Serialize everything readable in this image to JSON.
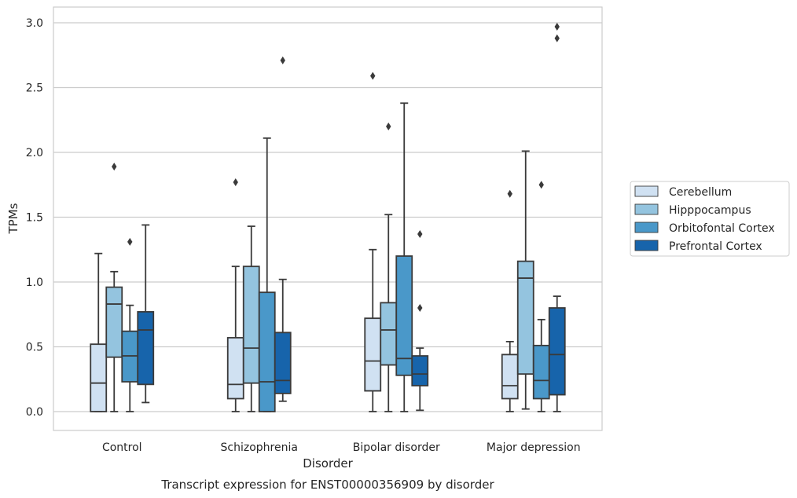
{
  "chart_data": {
    "type": "boxplot",
    "xlabel": "Disorder",
    "ylabel": "TPMs",
    "caption": "Transcript expression for ENST00000356909 by disorder",
    "categories": [
      "Control",
      "Schizophrenia",
      "Bipolar disorder",
      "Major depression"
    ],
    "ylim": [
      -0.15,
      3.12
    ],
    "yticks": [
      0.0,
      0.5,
      1.0,
      1.5,
      2.0,
      2.5,
      3.0
    ],
    "ytick_labels": [
      "0.0",
      "0.5",
      "1.0",
      "1.5",
      "2.0",
      "2.5",
      "3.0"
    ],
    "grid": "horizontal",
    "legend": {
      "placement": "right",
      "entries": [
        "Cerebellum",
        "Hipppocampus",
        "Orbitofontal Cortex",
        "Prefrontal Cortex"
      ]
    },
    "colors": [
      "#d0e1f2",
      "#94c4df",
      "#4a98c9",
      "#1764ab"
    ],
    "series": [
      {
        "name": "Cerebellum",
        "stats": [
          {
            "whislo": 0.0,
            "q1": 0.0,
            "med": 0.22,
            "q3": 0.52,
            "whishi": 1.22,
            "fliers": []
          },
          {
            "whislo": 0.0,
            "q1": 0.1,
            "med": 0.21,
            "q3": 0.57,
            "whishi": 1.12,
            "fliers": [
              1.77
            ]
          },
          {
            "whislo": 0.0,
            "q1": 0.16,
            "med": 0.39,
            "q3": 0.72,
            "whishi": 1.25,
            "fliers": [
              2.59
            ]
          },
          {
            "whislo": 0.0,
            "q1": 0.1,
            "med": 0.2,
            "q3": 0.44,
            "whishi": 0.54,
            "fliers": [
              1.68
            ]
          }
        ]
      },
      {
        "name": "Hipppocampus",
        "stats": [
          {
            "whislo": 0.0,
            "q1": 0.42,
            "med": 0.83,
            "q3": 0.96,
            "whishi": 1.08,
            "fliers": [
              1.89
            ]
          },
          {
            "whislo": 0.0,
            "q1": 0.22,
            "med": 0.49,
            "q3": 1.12,
            "whishi": 1.43,
            "fliers": []
          },
          {
            "whislo": 0.0,
            "q1": 0.36,
            "med": 0.63,
            "q3": 0.84,
            "whishi": 1.52,
            "fliers": [
              2.2
            ]
          },
          {
            "whislo": 0.02,
            "q1": 0.29,
            "med": 1.03,
            "q3": 1.16,
            "whishi": 2.01,
            "fliers": []
          }
        ]
      },
      {
        "name": "Orbitofontal Cortex",
        "stats": [
          {
            "whislo": 0.0,
            "q1": 0.23,
            "med": 0.43,
            "q3": 0.62,
            "whishi": 0.82,
            "fliers": [
              1.31
            ]
          },
          {
            "whislo": 0.0,
            "q1": 0.0,
            "med": 0.23,
            "q3": 0.92,
            "whishi": 2.11,
            "fliers": []
          },
          {
            "whislo": 0.0,
            "q1": 0.28,
            "med": 0.41,
            "q3": 1.2,
            "whishi": 2.38,
            "fliers": []
          },
          {
            "whislo": 0.0,
            "q1": 0.1,
            "med": 0.24,
            "q3": 0.51,
            "whishi": 0.71,
            "fliers": [
              1.75
            ]
          }
        ]
      },
      {
        "name": "Prefrontal Cortex",
        "stats": [
          {
            "whislo": 0.07,
            "q1": 0.21,
            "med": 0.63,
            "q3": 0.77,
            "whishi": 1.44,
            "fliers": []
          },
          {
            "whislo": 0.08,
            "q1": 0.14,
            "med": 0.24,
            "q3": 0.61,
            "whishi": 1.02,
            "fliers": [
              2.71
            ]
          },
          {
            "whislo": 0.01,
            "q1": 0.2,
            "med": 0.29,
            "q3": 0.43,
            "whishi": 0.49,
            "fliers": [
              1.37,
              0.8
            ]
          },
          {
            "whislo": 0.0,
            "q1": 0.13,
            "med": 0.44,
            "q3": 0.8,
            "whishi": 0.89,
            "fliers": [
              2.97,
              2.88
            ]
          }
        ]
      }
    ]
  }
}
